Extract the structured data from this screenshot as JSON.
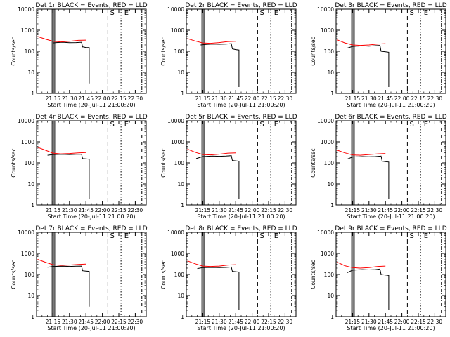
{
  "figure": {
    "xlabel": "Start Time (20-Jul-11 21:00:20)",
    "ylabel": "Counts/sec",
    "marker_labels": [
      "S",
      "E"
    ]
  },
  "chart_data": [
    {
      "type": "line",
      "title": "Det 1r BLACK = Events, RED = LLD",
      "x_ticks": [
        "21:15",
        "21:30",
        "21:45",
        "22:00",
        "22:15",
        "22:30"
      ],
      "y_ticks": [
        "1",
        "10",
        "100",
        "1000",
        "10000"
      ],
      "ylog": true,
      "series": [
        {
          "name": "Events",
          "color": "#000000",
          "x": [
            "21:15",
            "21:18",
            "21:24",
            "21:30",
            "21:36",
            "21:41",
            "21:42",
            "21:43",
            "21:45",
            "21:48",
            "21:48"
          ],
          "y": [
            250,
            260,
            270,
            255,
            260,
            270,
            160,
            160,
            150,
            150,
            3
          ]
        },
        {
          "name": "LLD",
          "color": "#ff0000",
          "x": [
            "21:01",
            "21:08",
            "21:15",
            "21:22",
            "21:30",
            "21:38",
            "21:45"
          ],
          "y": [
            500,
            380,
            300,
            280,
            300,
            330,
            340
          ]
        }
      ]
    },
    {
      "type": "line",
      "title": "Det 2r BLACK = Events, RED = LLD",
      "x_ticks": [
        "21:15",
        "21:30",
        "21:45",
        "22:00",
        "22:15",
        "22:30"
      ],
      "y_ticks": [
        "1",
        "10",
        "100",
        "1000",
        "10000"
      ],
      "ylog": true,
      "series": [
        {
          "name": "Events",
          "color": "#000000",
          "x": [
            "21:13",
            "21:18",
            "21:24",
            "21:30",
            "21:36",
            "21:41",
            "21:42",
            "21:45",
            "21:48",
            "21:48"
          ],
          "y": [
            200,
            210,
            220,
            215,
            220,
            230,
            130,
            120,
            115,
            2
          ]
        },
        {
          "name": "LLD",
          "color": "#ff0000",
          "x": [
            "21:01",
            "21:08",
            "21:15",
            "21:22",
            "21:30",
            "21:38",
            "21:45"
          ],
          "y": [
            400,
            310,
            250,
            240,
            260,
            290,
            300
          ]
        }
      ]
    },
    {
      "type": "line",
      "title": "Det 3r BLACK = Events, RED = LLD",
      "x_ticks": [
        "21:15",
        "21:30",
        "21:45",
        "22:00",
        "22:15",
        "22:30"
      ],
      "y_ticks": [
        "1",
        "10",
        "100",
        "1000",
        "10000"
      ],
      "ylog": true,
      "series": [
        {
          "name": "Events",
          "color": "#000000",
          "x": [
            "21:10",
            "21:15",
            "21:24",
            "21:30",
            "21:36",
            "21:40",
            "21:41",
            "21:45",
            "21:48",
            "21:48"
          ],
          "y": [
            140,
            170,
            180,
            175,
            185,
            190,
            100,
            95,
            90,
            2
          ]
        },
        {
          "name": "LLD",
          "color": "#ff0000",
          "x": [
            "21:01",
            "21:08",
            "21:15",
            "21:22",
            "21:30",
            "21:38",
            "21:45"
          ],
          "y": [
            350,
            250,
            200,
            190,
            200,
            220,
            230
          ]
        }
      ]
    },
    {
      "type": "line",
      "title": "Det 4r BLACK = Events, RED = LLD",
      "x_ticks": [
        "21:15",
        "21:30",
        "21:45",
        "22:00",
        "22:15",
        "22:30"
      ],
      "y_ticks": [
        "1",
        "10",
        "100",
        "1000",
        "10000"
      ],
      "ylog": true,
      "series": [
        {
          "name": "Events",
          "color": "#000000",
          "x": [
            "21:10",
            "21:15",
            "21:24",
            "21:30",
            "21:36",
            "21:41",
            "21:42",
            "21:45",
            "21:48",
            "21:48"
          ],
          "y": [
            230,
            250,
            255,
            250,
            255,
            260,
            160,
            155,
            150,
            2
          ]
        },
        {
          "name": "LLD",
          "color": "#ff0000",
          "x": [
            "21:01",
            "21:08",
            "21:15",
            "21:22",
            "21:30",
            "21:38",
            "21:45"
          ],
          "y": [
            550,
            400,
            290,
            270,
            280,
            300,
            310
          ]
        }
      ]
    },
    {
      "type": "line",
      "title": "Det 5r BLACK = Events, RED = LLD",
      "x_ticks": [
        "21:15",
        "21:30",
        "21:45",
        "22:00",
        "22:15",
        "22:30"
      ],
      "y_ticks": [
        "1",
        "10",
        "100",
        "1000",
        "10000"
      ],
      "ylog": true,
      "series": [
        {
          "name": "Events",
          "color": "#000000",
          "x": [
            "21:09",
            "21:15",
            "21:24",
            "21:30",
            "21:36",
            "21:41",
            "21:42",
            "21:45",
            "21:48",
            "21:48"
          ],
          "y": [
            160,
            200,
            210,
            205,
            210,
            220,
            130,
            125,
            120,
            2
          ]
        },
        {
          "name": "LLD",
          "color": "#ff0000",
          "x": [
            "21:01",
            "21:08",
            "21:15",
            "21:22",
            "21:30",
            "21:38",
            "21:45"
          ],
          "y": [
            450,
            320,
            250,
            240,
            260,
            290,
            300
          ]
        }
      ]
    },
    {
      "type": "line",
      "title": "Det 6r BLACK = Events, RED = LLD",
      "x_ticks": [
        "21:15",
        "21:30",
        "21:45",
        "22:00",
        "22:15",
        "22:30"
      ],
      "y_ticks": [
        "1",
        "10",
        "100",
        "1000",
        "10000"
      ],
      "ylog": true,
      "series": [
        {
          "name": "Events",
          "color": "#000000",
          "x": [
            "21:10",
            "21:15",
            "21:24",
            "21:30",
            "21:36",
            "21:41",
            "21:42",
            "21:45",
            "21:48",
            "21:48"
          ],
          "y": [
            150,
            190,
            200,
            195,
            200,
            210,
            120,
            115,
            110,
            2
          ]
        },
        {
          "name": "LLD",
          "color": "#ff0000",
          "x": [
            "21:01",
            "21:08",
            "21:15",
            "21:22",
            "21:30",
            "21:38",
            "21:45"
          ],
          "y": [
            400,
            300,
            240,
            230,
            250,
            270,
            280
          ]
        }
      ]
    },
    {
      "type": "line",
      "title": "Det 7r BLACK = Events, RED = LLD",
      "x_ticks": [
        "21:15",
        "21:30",
        "21:45",
        "22:00",
        "22:15",
        "22:30"
      ],
      "y_ticks": [
        "1",
        "10",
        "100",
        "1000",
        "10000"
      ],
      "ylog": true,
      "series": [
        {
          "name": "Events",
          "color": "#000000",
          "x": [
            "21:10",
            "21:15",
            "21:24",
            "21:30",
            "21:36",
            "21:41",
            "21:42",
            "21:45",
            "21:48",
            "21:48"
          ],
          "y": [
            220,
            240,
            245,
            240,
            245,
            250,
            150,
            145,
            140,
            3
          ]
        },
        {
          "name": "LLD",
          "color": "#ff0000",
          "x": [
            "21:01",
            "21:08",
            "21:15",
            "21:22",
            "21:30",
            "21:38",
            "21:45"
          ],
          "y": [
            520,
            380,
            290,
            270,
            280,
            300,
            310
          ]
        }
      ]
    },
    {
      "type": "line",
      "title": "Det 8r BLACK = Events, RED = LLD",
      "x_ticks": [
        "21:15",
        "21:30",
        "21:45",
        "22:00",
        "22:15",
        "22:30"
      ],
      "y_ticks": [
        "1",
        "10",
        "100",
        "1000",
        "10000"
      ],
      "ylog": true,
      "series": [
        {
          "name": "Events",
          "color": "#000000",
          "x": [
            "21:10",
            "21:15",
            "21:24",
            "21:30",
            "21:36",
            "21:41",
            "21:42",
            "21:45",
            "21:48",
            "21:48"
          ],
          "y": [
            190,
            210,
            215,
            210,
            215,
            225,
            140,
            135,
            130,
            2
          ]
        },
        {
          "name": "LLD",
          "color": "#ff0000",
          "x": [
            "21:01",
            "21:08",
            "21:15",
            "21:22",
            "21:30",
            "21:38",
            "21:45"
          ],
          "y": [
            440,
            320,
            250,
            240,
            250,
            280,
            290
          ]
        }
      ]
    },
    {
      "type": "line",
      "title": "Det 9r BLACK = Events, RED = LLD",
      "x_ticks": [
        "21:15",
        "21:30",
        "21:45",
        "22:00",
        "22:15",
        "22:30"
      ],
      "y_ticks": [
        "1",
        "10",
        "100",
        "1000",
        "10000"
      ],
      "ylog": true,
      "series": [
        {
          "name": "Events",
          "color": "#000000",
          "x": [
            "21:10",
            "21:15",
            "21:24",
            "21:30",
            "21:36",
            "21:40",
            "21:41",
            "21:45",
            "21:48",
            "21:48"
          ],
          "y": [
            120,
            160,
            170,
            165,
            170,
            180,
            100,
            95,
            90,
            2
          ]
        },
        {
          "name": "LLD",
          "color": "#ff0000",
          "x": [
            "21:01",
            "21:08",
            "21:15",
            "21:22",
            "21:30",
            "21:38",
            "21:45"
          ],
          "y": [
            380,
            260,
            210,
            200,
            210,
            240,
            250
          ]
        }
      ]
    }
  ]
}
